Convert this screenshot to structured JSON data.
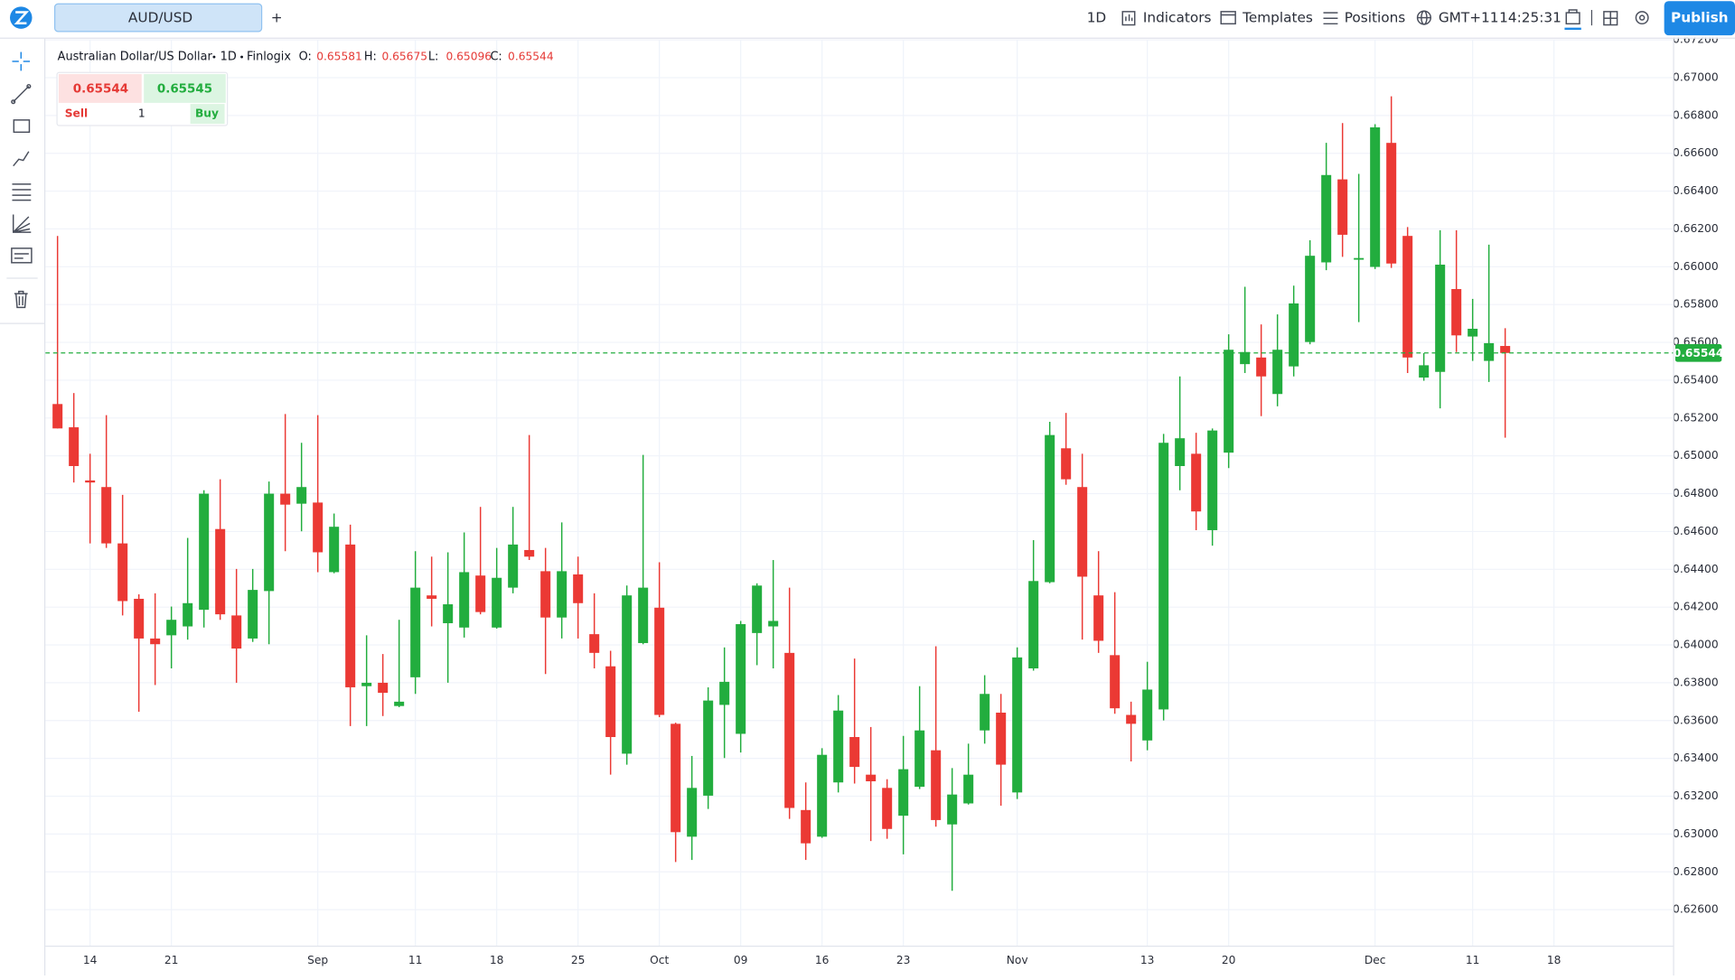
{
  "toolbar": {
    "tab": "AUD/USD",
    "new_tab": "+",
    "interval": "1D",
    "indicators": "Indicators",
    "templates": "Templates",
    "positions": "Positions",
    "timezone": "GMT+11",
    "time": "14:25:31",
    "publish": "Publish"
  },
  "trade_panel": {
    "sell_price": "0.65544",
    "buy_price": "0.65545",
    "sell": "Sell",
    "quantity": "1",
    "buy": "Buy"
  },
  "chart_data": {
    "type": "candlestick",
    "title": "Australian Dollar/US Dollar",
    "interval": "1D",
    "source": "Finlogix",
    "ohlc_labels": [
      "O:",
      "H:",
      "L:",
      "C:"
    ],
    "up_color": "#22ad3e",
    "down_color": "#eb3934",
    "grid": true,
    "last_price": 0.65544,
    "last_price_color": "#22ad3e",
    "ylim": [
      0.6241,
      0.672
    ],
    "yticks": [
      {
        "value": 0.626,
        "label": "0.62600"
      },
      {
        "value": 0.628,
        "label": "0.62800"
      },
      {
        "value": 0.63,
        "label": "0.63000"
      },
      {
        "value": 0.632,
        "label": "0.63200"
      },
      {
        "value": 0.634,
        "label": "0.63400"
      },
      {
        "value": 0.636,
        "label": "0.63600"
      },
      {
        "value": 0.638,
        "label": "0.63800"
      },
      {
        "value": 0.64,
        "label": "0.64000"
      },
      {
        "value": 0.642,
        "label": "0.64200"
      },
      {
        "value": 0.644,
        "label": "0.64400"
      },
      {
        "value": 0.646,
        "label": "0.64600"
      },
      {
        "value": 0.648,
        "label": "0.64800"
      },
      {
        "value": 0.65,
        "label": "0.65000"
      },
      {
        "value": 0.652,
        "label": "0.65200"
      },
      {
        "value": 0.654,
        "label": "0.65400"
      },
      {
        "value": 0.656,
        "label": "0.65600"
      },
      {
        "value": 0.658,
        "label": "0.65800"
      },
      {
        "value": 0.66,
        "label": "0.66000"
      },
      {
        "value": 0.662,
        "label": "0.66200"
      },
      {
        "value": 0.664,
        "label": "0.66400"
      },
      {
        "value": 0.666,
        "label": "0.66600"
      },
      {
        "value": 0.668,
        "label": "0.66800"
      },
      {
        "value": 0.67,
        "label": "0.67000"
      },
      {
        "value": 0.672,
        "label": "0.67200"
      }
    ],
    "categories": [
      null,
      null,
      "14",
      null,
      null,
      null,
      null,
      "21",
      null,
      null,
      null,
      null,
      null,
      null,
      null,
      null,
      "Sep",
      null,
      null,
      null,
      null,
      null,
      "11",
      null,
      null,
      null,
      null,
      "18",
      null,
      null,
      null,
      null,
      "25",
      null,
      null,
      null,
      null,
      "Oct",
      null,
      null,
      null,
      null,
      "09",
      null,
      null,
      null,
      null,
      "16",
      null,
      null,
      null,
      null,
      "23",
      null,
      null,
      null,
      null,
      null,
      null,
      "Nov",
      null,
      null,
      null,
      null,
      null,
      null,
      null,
      "13",
      null,
      null,
      null,
      null,
      "20",
      null,
      null,
      null,
      null,
      null,
      null,
      null,
      null,
      "Dec",
      null,
      null,
      null,
      null,
      null,
      "11",
      null,
      null,
      null,
      null,
      "18"
    ],
    "open": [
      0.65274,
      0.65151,
      0.6487,
      0.64835,
      0.64537,
      0.64244,
      0.64034,
      0.64051,
      0.64098,
      0.64186,
      0.64613,
      0.64156,
      0.64034,
      0.64285,
      0.648,
      0.64747,
      0.64753,
      0.64385,
      0.64531,
      0.63782,
      0.638,
      0.63677,
      0.63829,
      0.64262,
      0.64115,
      0.64092,
      0.64367,
      0.64092,
      0.64303,
      0.64502,
      0.6439,
      0.64145,
      0.64373,
      0.64057,
      0.63887,
      0.63425,
      0.6401,
      0.64197,
      0.63583,
      0.62986,
      0.63203,
      0.63683,
      0.6353,
      0.64063,
      0.64098,
      0.63958,
      0.63127,
      0.62986,
      0.63273,
      0.63513,
      0.63314,
      0.63244,
      0.63097,
      0.6325,
      0.63443,
      0.63051,
      0.63162,
      0.63548,
      0.63642,
      0.6322,
      0.63876,
      0.64332,
      0.6504,
      0.64835,
      0.64262,
      0.63946,
      0.6363,
      0.63495,
      0.63659,
      0.64946,
      0.65011,
      0.64607,
      0.65017,
      0.65485,
      0.6552,
      0.65327,
      0.65473,
      0.65602,
      0.66023,
      0.66462,
      0.6604,
      0.65999,
      0.66655,
      0.66163,
      0.65414,
      0.65444,
      0.65882,
      0.65631,
      0.65502,
      0.65581,
      null,
      null,
      null
    ],
    "high": [
      0.66163,
      0.65332,
      0.65011,
      0.65215,
      0.64794,
      0.64268,
      0.64273,
      0.64203,
      0.64566,
      0.64818,
      0.64876,
      0.64402,
      0.64402,
      0.64864,
      0.65221,
      0.65069,
      0.65215,
      0.64695,
      0.64636,
      0.64051,
      0.63952,
      0.64133,
      0.64496,
      0.64467,
      0.6449,
      0.64595,
      0.6473,
      0.64513,
      0.6473,
      0.6511,
      0.64513,
      0.64648,
      0.64467,
      0.64273,
      0.63969,
      0.64314,
      0.65005,
      0.64437,
      0.63589,
      0.63413,
      0.63776,
      0.63987,
      0.64127,
      0.64326,
      0.64449,
      0.64303,
      0.63273,
      0.63454,
      0.63735,
      0.63928,
      0.63566,
      0.6329,
      0.63519,
      0.63782,
      0.63993,
      0.63349,
      0.63478,
      0.6384,
      0.63741,
      0.63987,
      0.64554,
      0.6518,
      0.65227,
      0.65011,
      0.64496,
      0.64279,
      0.637,
      0.63911,
      0.65116,
      0.6542,
      0.65122,
      0.65145,
      0.65643,
      0.65894,
      0.65695,
      0.65748,
      0.659,
      0.6614,
      0.66655,
      0.6676,
      0.66491,
      0.66754,
      0.66901,
      0.6621,
      0.65543,
      0.66193,
      0.66193,
      0.6583,
      0.66117,
      0.65675,
      null,
      null,
      null
    ],
    "low": [
      0.65145,
      0.64859,
      0.64537,
      0.64513,
      0.64156,
      0.63647,
      0.63788,
      0.63876,
      0.64028,
      0.64092,
      0.64133,
      0.638,
      0.64016,
      0.64004,
      0.64496,
      0.64601,
      0.64385,
      0.64379,
      0.63571,
      0.63571,
      0.63624,
      0.63671,
      0.63741,
      0.64098,
      0.638,
      0.64039,
      0.64162,
      0.64086,
      0.64273,
      0.64449,
      0.63846,
      0.64034,
      0.64034,
      0.63876,
      0.63314,
      0.63367,
      0.64004,
      0.63618,
      0.62852,
      0.62863,
      0.63133,
      0.63402,
      0.63431,
      0.63893,
      0.63876,
      0.6308,
      0.62863,
      0.6298,
      0.6322,
      0.63267,
      0.62963,
      0.62975,
      0.62893,
      0.63238,
      0.63039,
      0.627,
      0.63156,
      0.63478,
      0.6315,
      0.63185,
      0.63864,
      0.64326,
      0.64847,
      0.64028,
      0.63958,
      0.63636,
      0.63384,
      0.63443,
      0.63601,
      0.64818,
      0.64607,
      0.64525,
      0.64935,
      0.65438,
      0.6521,
      0.65262,
      0.6542,
      0.6559,
      0.65982,
      0.66052,
      0.65707,
      0.65988,
      0.65994,
      0.65438,
      0.65397,
      0.65251,
      0.65549,
      0.65502,
      0.65391,
      0.65096,
      null,
      null,
      null
    ],
    "close": [
      0.65145,
      0.64946,
      0.64859,
      0.64537,
      0.64232,
      0.64034,
      0.64004,
      0.64133,
      0.64221,
      0.648,
      0.64162,
      0.63981,
      0.64291,
      0.648,
      0.64742,
      0.64835,
      0.6449,
      0.64625,
      0.63776,
      0.638,
      0.63747,
      0.637,
      0.64303,
      0.64244,
      0.64215,
      0.64385,
      0.64174,
      0.64355,
      0.64531,
      0.64467,
      0.64145,
      0.6439,
      0.64221,
      0.63958,
      0.63513,
      0.64262,
      0.64303,
      0.6363,
      0.6301,
      0.63244,
      0.63706,
      0.63805,
      0.6411,
      0.64314,
      0.64127,
      0.63138,
      0.62951,
      0.63419,
      0.63653,
      0.63355,
      0.63279,
      0.63027,
      0.63343,
      0.63548,
      0.63074,
      0.63209,
      0.63314,
      0.63741,
      0.63367,
      0.63934,
      0.64338,
      0.6511,
      0.64876,
      0.64361,
      0.64022,
      0.63665,
      0.63583,
      0.63764,
      0.65069,
      0.65093,
      0.64706,
      0.65134,
      0.65561,
      0.65549,
      0.6542,
      0.65561,
      0.65806,
      0.66058,
      0.66485,
      0.66169,
      0.66046,
      0.66737,
      0.66017,
      0.6552,
      0.65479,
      0.66011,
      0.65637,
      0.65672,
      0.65596,
      0.65544,
      null,
      null,
      null
    ]
  }
}
